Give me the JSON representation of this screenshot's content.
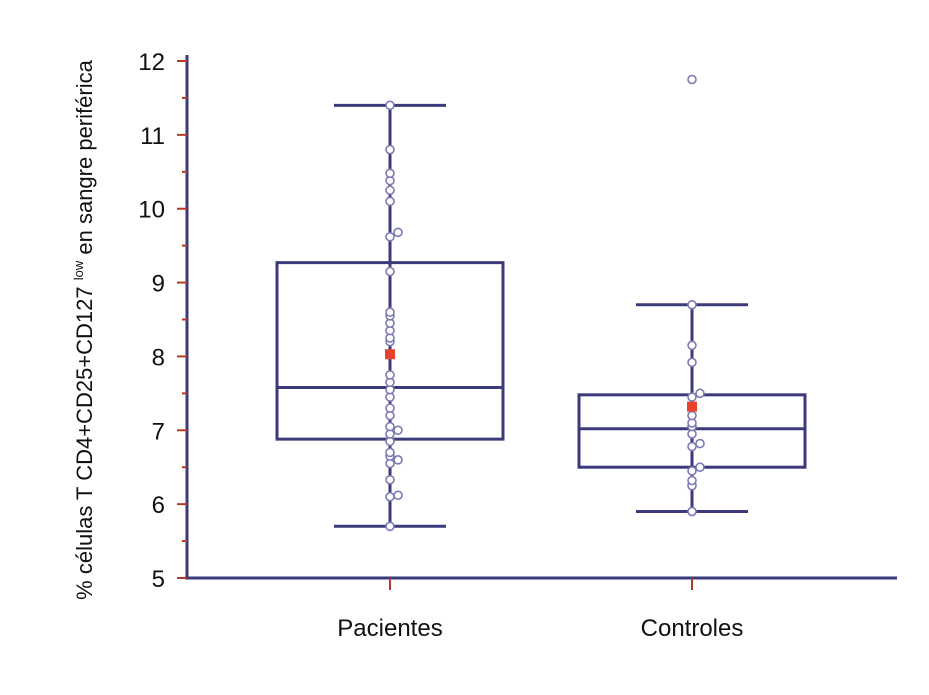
{
  "chart_data": {
    "type": "box",
    "categories": [
      "Pacientes",
      "Controles"
    ],
    "ylabel_prefix": "% células T CD4+CD25+CD127",
    "ylabel_superscript": "low",
    "ylabel_suffix": "en sangre periférica",
    "ylim": [
      5,
      12
    ],
    "yticks": [
      "5",
      "6",
      "7",
      "8",
      "9",
      "10",
      "11",
      "12"
    ],
    "grid": false,
    "colors": {
      "box": "#3c3a7a",
      "point": "#7c7ab4",
      "mean": "#e8412c",
      "axis": "#3c3a7a",
      "tick": "#b23a2a"
    },
    "boxes": [
      {
        "name": "Pacientes",
        "whisker_low": 5.7,
        "q1": 6.88,
        "median": 7.58,
        "q3": 9.27,
        "whisker_high": 11.4,
        "mean": 8.03,
        "points": [
          5.7,
          6.1,
          6.12,
          6.33,
          6.55,
          6.6,
          6.65,
          6.7,
          6.85,
          6.95,
          7.0,
          7.05,
          7.2,
          7.3,
          7.45,
          7.55,
          7.65,
          7.75,
          8.2,
          8.25,
          8.35,
          8.45,
          8.55,
          8.6,
          9.15,
          9.62,
          9.68,
          10.1,
          10.25,
          10.38,
          10.48,
          10.8,
          11.4
        ]
      },
      {
        "name": "Controles",
        "whisker_low": 5.9,
        "q1": 6.5,
        "median": 7.02,
        "q3": 7.48,
        "whisker_high": 8.7,
        "mean": 7.32,
        "points": [
          5.9,
          6.25,
          6.32,
          6.45,
          6.5,
          6.78,
          6.82,
          6.95,
          7.05,
          7.1,
          7.2,
          7.32,
          7.45,
          7.5,
          7.92,
          8.15,
          8.7,
          11.75
        ]
      }
    ]
  }
}
